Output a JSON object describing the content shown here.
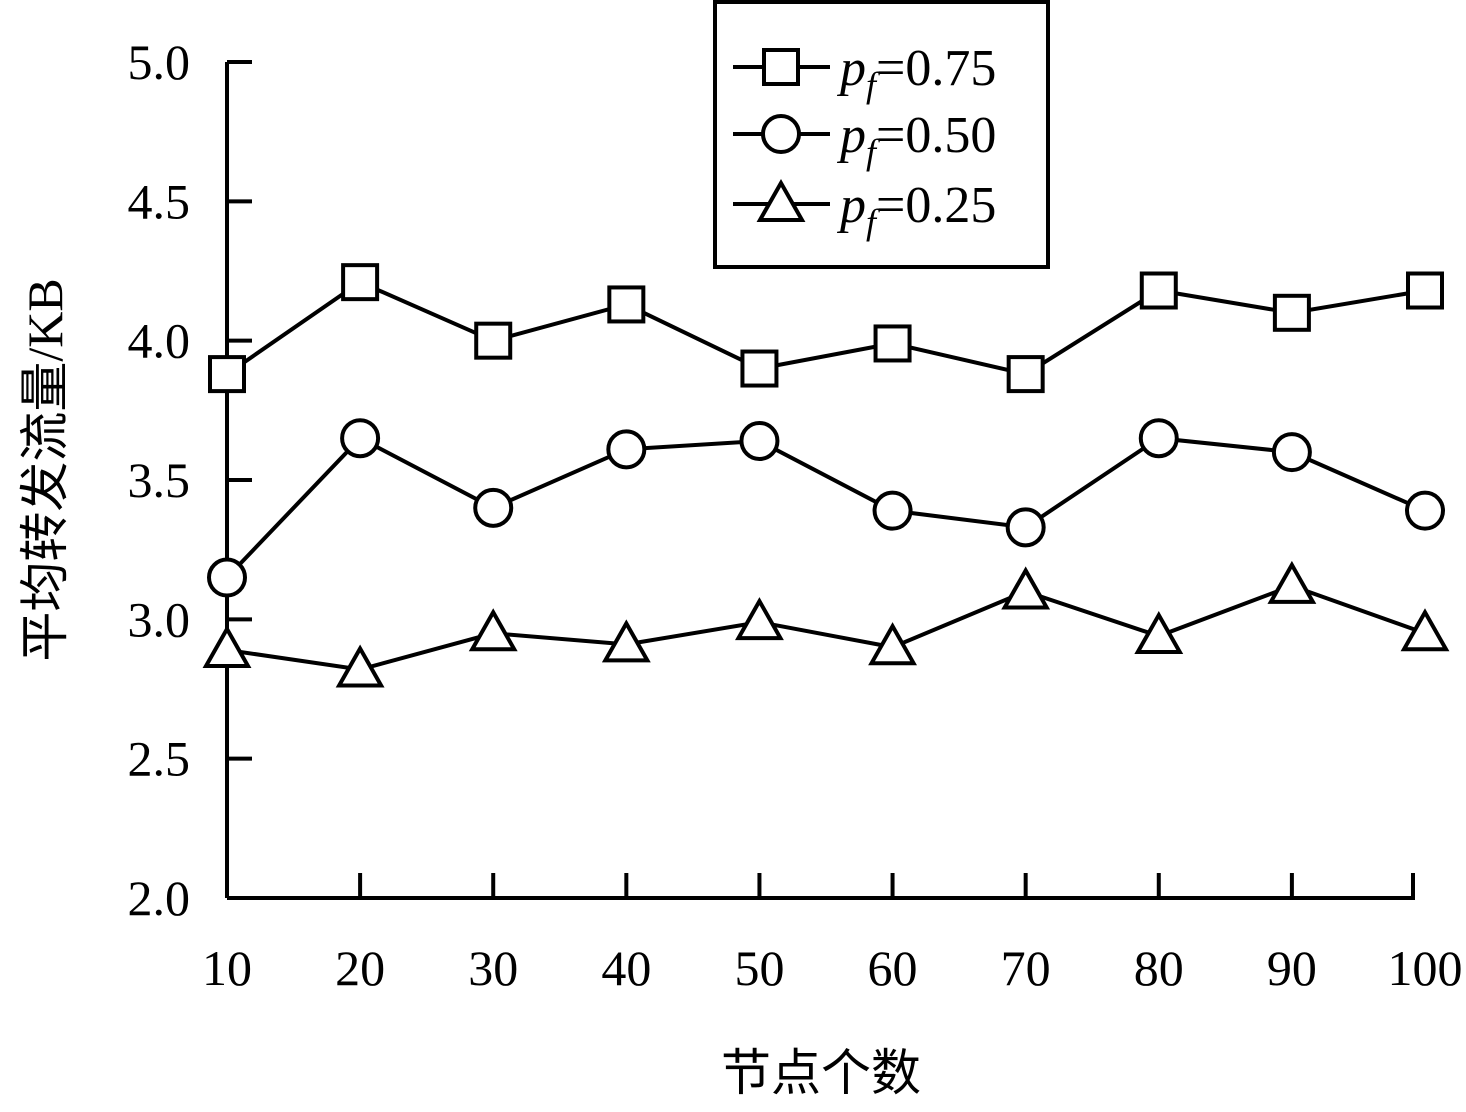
{
  "chart_data": {
    "type": "line",
    "title": "",
    "xlabel": "节点个数",
    "ylabel": "平均转发流量/KB",
    "x": [
      10,
      20,
      30,
      40,
      50,
      60,
      70,
      80,
      90,
      100
    ],
    "x_tick_labels": [
      "10",
      "20",
      "30",
      "40",
      "50",
      "60",
      "70",
      "80",
      "90",
      "100"
    ],
    "y_tick_labels": [
      "2.0",
      "2.5",
      "3.0",
      "3.5",
      "4.0",
      "4.5",
      "5.0"
    ],
    "ylim": [
      2.0,
      5.0
    ],
    "grid": false,
    "legend_position": "top-center",
    "series": [
      {
        "name": "pf=0.75",
        "name_base": "p",
        "name_sub": "f",
        "name_suffix": "=0.75",
        "marker": "square",
        "values": [
          3.88,
          4.21,
          4.0,
          4.13,
          3.9,
          3.99,
          3.88,
          4.18,
          4.1,
          4.18
        ]
      },
      {
        "name": "pf=0.50",
        "name_base": "p",
        "name_sub": "f",
        "name_suffix": "=0.50",
        "marker": "circle",
        "values": [
          3.15,
          3.65,
          3.4,
          3.61,
          3.64,
          3.39,
          3.33,
          3.65,
          3.6,
          3.39
        ]
      },
      {
        "name": "pf=0.25",
        "name_base": "p",
        "name_sub": "f",
        "name_suffix": "=0.25",
        "marker": "triangle",
        "values": [
          2.89,
          2.82,
          2.95,
          2.91,
          2.99,
          2.9,
          3.1,
          2.94,
          3.12,
          2.95
        ]
      }
    ],
    "colors": {
      "line": "#000000",
      "marker_fill": "#ffffff",
      "background": "#ffffff"
    }
  }
}
